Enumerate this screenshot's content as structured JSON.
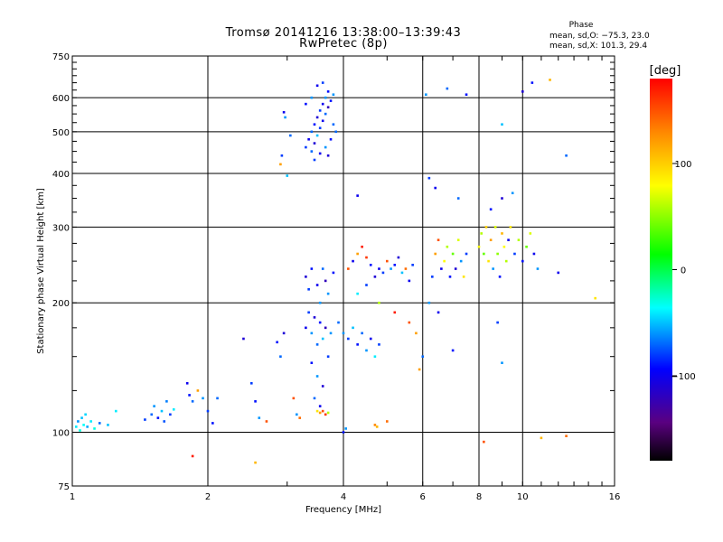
{
  "chart_data": {
    "type": "scatter",
    "title": "Tromsø 20141216 13:38:00–13:39:43",
    "subtitle": "RwPretec (8p)",
    "xlabel": "Frequency [MHz]",
    "ylabel": "Stationary phase Virtual Height [km]",
    "x_scale": "log",
    "y_scale": "log",
    "xlim": [
      1,
      16
    ],
    "ylim": [
      75,
      750
    ],
    "x_ticks": [
      1,
      2,
      4,
      6,
      8,
      10,
      16
    ],
    "x_tick_labels": [
      "1",
      "2",
      "4",
      "6",
      "8",
      "10",
      "16"
    ],
    "y_ticks": [
      75,
      100,
      200,
      300,
      400,
      500,
      600,
      750
    ],
    "y_tick_labels": [
      "75",
      "100",
      "200",
      "300",
      "400",
      "500",
      "600",
      "750"
    ],
    "grid": true,
    "phase_info": {
      "heading": "Phase",
      "line_o": "mean, sd,O: −75.3, 23.0",
      "line_x": "mean, sd,X: 101.3, 29.4"
    },
    "colorbar": {
      "label": "[deg]",
      "range": [
        -180,
        180
      ],
      "ticks": [
        100,
        0,
        -100
      ],
      "tick_labels": [
        "100",
        "0",
        "−100"
      ],
      "colormap": "rainbow (black → purple → blue → cyan → green → yellow → orange → red)"
    },
    "points": [
      [
        1.02,
        103,
        -40
      ],
      [
        1.03,
        106,
        -60
      ],
      [
        1.04,
        101,
        -30
      ],
      [
        1.05,
        108,
        -50
      ],
      [
        1.06,
        104,
        -35
      ],
      [
        1.07,
        110,
        -45
      ],
      [
        1.08,
        103,
        -55
      ],
      [
        1.1,
        106,
        -40
      ],
      [
        1.12,
        102,
        -30
      ],
      [
        1.15,
        105,
        -70
      ],
      [
        1.2,
        104,
        -50
      ],
      [
        1.25,
        112,
        -40
      ],
      [
        1.45,
        107,
        -80
      ],
      [
        1.5,
        110,
        -70
      ],
      [
        1.52,
        115,
        -60
      ],
      [
        1.55,
        108,
        -90
      ],
      [
        1.58,
        112,
        -50
      ],
      [
        1.6,
        106,
        -75
      ],
      [
        1.62,
        118,
        -65
      ],
      [
        1.65,
        110,
        -80
      ],
      [
        1.68,
        113,
        -40
      ],
      [
        1.8,
        130,
        -100
      ],
      [
        1.82,
        122,
        -90
      ],
      [
        1.85,
        118,
        -70
      ],
      [
        1.9,
        125,
        120
      ],
      [
        1.95,
        120,
        -60
      ],
      [
        2.0,
        112,
        -80
      ],
      [
        2.05,
        105,
        -90
      ],
      [
        2.1,
        120,
        -70
      ],
      [
        1.85,
        88,
        170
      ],
      [
        2.4,
        165,
        -110
      ],
      [
        2.5,
        130,
        -80
      ],
      [
        2.55,
        118,
        -90
      ],
      [
        2.6,
        108,
        -60
      ],
      [
        2.7,
        106,
        150
      ],
      [
        2.55,
        85,
        110
      ],
      [
        2.85,
        162,
        -90
      ],
      [
        2.9,
        150,
        -70
      ],
      [
        2.95,
        170,
        -110
      ],
      [
        3.1,
        120,
        150
      ],
      [
        3.15,
        110,
        -60
      ],
      [
        3.2,
        108,
        140
      ],
      [
        2.9,
        420,
        120
      ],
      [
        2.92,
        440,
        -80
      ],
      [
        2.95,
        555,
        -100
      ],
      [
        2.97,
        540,
        -60
      ],
      [
        3.0,
        395,
        -50
      ],
      [
        3.05,
        490,
        -70
      ],
      [
        3.3,
        175,
        -100
      ],
      [
        3.35,
        190,
        -80
      ],
      [
        3.4,
        170,
        -60
      ],
      [
        3.45,
        185,
        -110
      ],
      [
        3.5,
        160,
        -70
      ],
      [
        3.55,
        180,
        -90
      ],
      [
        3.6,
        165,
        -50
      ],
      [
        3.65,
        175,
        -120
      ],
      [
        3.7,
        150,
        -80
      ],
      [
        3.75,
        170,
        -60
      ],
      [
        3.4,
        145,
        -90
      ],
      [
        3.5,
        135,
        -60
      ],
      [
        3.6,
        128,
        -110
      ],
      [
        3.45,
        120,
        -70
      ],
      [
        3.55,
        115,
        -100
      ],
      [
        3.3,
        230,
        -110
      ],
      [
        3.4,
        240,
        -90
      ],
      [
        3.5,
        220,
        -100
      ],
      [
        3.6,
        240,
        -70
      ],
      [
        3.7,
        210,
        -60
      ],
      [
        3.8,
        235,
        -90
      ],
      [
        3.35,
        215,
        -80
      ],
      [
        3.65,
        225,
        -120
      ],
      [
        3.55,
        200,
        -60
      ],
      [
        3.5,
        112,
        90
      ],
      [
        3.55,
        111,
        120
      ],
      [
        3.6,
        112,
        150
      ],
      [
        3.7,
        111,
        60
      ],
      [
        3.65,
        110,
        160
      ],
      [
        3.3,
        460,
        -80
      ],
      [
        3.35,
        480,
        -100
      ],
      [
        3.4,
        500,
        -70
      ],
      [
        3.45,
        520,
        -90
      ],
      [
        3.5,
        540,
        -110
      ],
      [
        3.55,
        560,
        -80
      ],
      [
        3.6,
        580,
        -100
      ],
      [
        3.65,
        600,
        -60
      ],
      [
        3.7,
        620,
        -90
      ],
      [
        3.4,
        450,
        -70
      ],
      [
        3.45,
        470,
        -110
      ],
      [
        3.5,
        490,
        -50
      ],
      [
        3.55,
        510,
        -80
      ],
      [
        3.6,
        530,
        -100
      ],
      [
        3.65,
        550,
        -70
      ],
      [
        3.7,
        570,
        -120
      ],
      [
        3.75,
        590,
        -90
      ],
      [
        3.8,
        610,
        -60
      ],
      [
        3.45,
        430,
        -80
      ],
      [
        3.55,
        445,
        -100
      ],
      [
        3.65,
        460,
        -60
      ],
      [
        3.75,
        480,
        -90
      ],
      [
        3.85,
        500,
        -70
      ],
      [
        3.5,
        640,
        -100
      ],
      [
        3.6,
        650,
        -80
      ],
      [
        3.4,
        600,
        -60
      ],
      [
        3.3,
        580,
        -90
      ],
      [
        3.7,
        440,
        -110
      ],
      [
        3.8,
        520,
        -70
      ],
      [
        3.9,
        180,
        -70
      ],
      [
        4.0,
        170,
        -60
      ],
      [
        4.1,
        165,
        -80
      ],
      [
        4.2,
        175,
        -50
      ],
      [
        4.3,
        160,
        -90
      ],
      [
        4.4,
        170,
        -70
      ],
      [
        4.5,
        155,
        -60
      ],
      [
        4.6,
        165,
        -100
      ],
      [
        4.7,
        150,
        -40
      ],
      [
        4.8,
        160,
        -80
      ],
      [
        4.1,
        240,
        150
      ],
      [
        4.2,
        250,
        -100
      ],
      [
        4.3,
        260,
        120
      ],
      [
        4.4,
        270,
        170
      ],
      [
        4.5,
        255,
        160
      ],
      [
        4.6,
        245,
        -90
      ],
      [
        4.7,
        230,
        -110
      ],
      [
        4.8,
        240,
        -100
      ],
      [
        4.9,
        235,
        -80
      ],
      [
        5.0,
        250,
        150
      ],
      [
        5.1,
        240,
        -60
      ],
      [
        5.2,
        245,
        -90
      ],
      [
        5.3,
        255,
        -110
      ],
      [
        5.4,
        235,
        -50
      ],
      [
        5.5,
        240,
        140
      ],
      [
        5.6,
        225,
        -100
      ],
      [
        5.7,
        245,
        -80
      ],
      [
        4.3,
        210,
        -40
      ],
      [
        4.5,
        220,
        -80
      ],
      [
        4.8,
        200,
        60
      ],
      [
        5.2,
        190,
        170
      ],
      [
        5.6,
        180,
        150
      ],
      [
        5.8,
        170,
        120
      ],
      [
        6.0,
        150,
        -70
      ],
      [
        4.0,
        100,
        -90
      ],
      [
        4.05,
        102,
        -60
      ],
      [
        4.7,
        104,
        130
      ],
      [
        4.75,
        103,
        110
      ],
      [
        5.0,
        106,
        140
      ],
      [
        4.3,
        355,
        -100
      ],
      [
        6.2,
        200,
        -60
      ],
      [
        6.3,
        230,
        -80
      ],
      [
        6.4,
        260,
        120
      ],
      [
        6.5,
        280,
        150
      ],
      [
        6.6,
        240,
        -100
      ],
      [
        6.7,
        250,
        80
      ],
      [
        6.8,
        270,
        60
      ],
      [
        6.9,
        230,
        -90
      ],
      [
        7.0,
        260,
        40
      ],
      [
        7.1,
        240,
        -110
      ],
      [
        7.2,
        280,
        70
      ],
      [
        7.3,
        250,
        -60
      ],
      [
        7.4,
        230,
        90
      ],
      [
        7.5,
        260,
        -80
      ],
      [
        8.0,
        270,
        80
      ],
      [
        8.1,
        290,
        60
      ],
      [
        8.2,
        260,
        40
      ],
      [
        8.3,
        300,
        100
      ],
      [
        8.4,
        250,
        90
      ],
      [
        8.5,
        280,
        120
      ],
      [
        8.6,
        240,
        -60
      ],
      [
        8.7,
        300,
        70
      ],
      [
        8.8,
        260,
        50
      ],
      [
        8.9,
        230,
        -90
      ],
      [
        9.0,
        290,
        110
      ],
      [
        9.1,
        270,
        80
      ],
      [
        9.2,
        250,
        60
      ],
      [
        9.3,
        280,
        -100
      ],
      [
        9.4,
        300,
        90
      ],
      [
        9.6,
        260,
        -80
      ],
      [
        9.8,
        280,
        60
      ],
      [
        10.0,
        250,
        -90
      ],
      [
        10.2,
        270,
        40
      ],
      [
        10.4,
        290,
        70
      ],
      [
        10.6,
        260,
        -100
      ],
      [
        10.8,
        240,
        -60
      ],
      [
        6.2,
        390,
        -80
      ],
      [
        6.4,
        370,
        -100
      ],
      [
        7.2,
        350,
        -70
      ],
      [
        8.5,
        330,
        -90
      ],
      [
        9.0,
        350,
        -110
      ],
      [
        9.5,
        360,
        -60
      ],
      [
        6.1,
        610,
        -60
      ],
      [
        6.8,
        630,
        -70
      ],
      [
        7.5,
        610,
        -90
      ],
      [
        9.0,
        520,
        -50
      ],
      [
        10.0,
        620,
        -110
      ],
      [
        10.5,
        650,
        -90
      ],
      [
        11.5,
        660,
        110
      ],
      [
        12.5,
        440,
        -70
      ],
      [
        8.2,
        95,
        150
      ],
      [
        11.0,
        97,
        110
      ],
      [
        12.5,
        98,
        140
      ],
      [
        14.5,
        205,
        90
      ],
      [
        12.0,
        235,
        -100
      ],
      [
        8.8,
        180,
        -80
      ],
      [
        9.0,
        145,
        -60
      ],
      [
        7.0,
        155,
        -90
      ],
      [
        5.9,
        140,
        120
      ],
      [
        6.5,
        190,
        -100
      ]
    ]
  }
}
